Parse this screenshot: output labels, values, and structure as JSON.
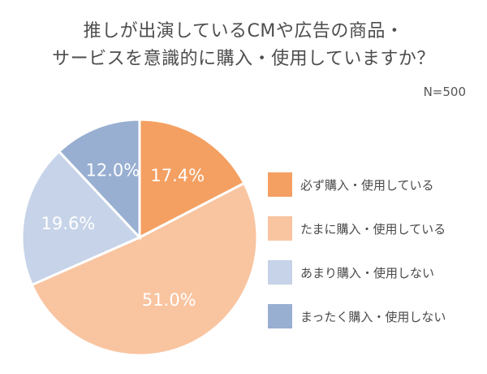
{
  "title_lines": [
    "推しが出演しているCMや広告の商品・",
    "サービスを意識的に購入・使用していますか？"
  ],
  "sample_size": "N=500",
  "chart_data": {
    "type": "pie",
    "title": "推しが出演しているCMや広告の商品・サービスを意識的に購入・使用していますか？",
    "categories": [
      "必ず購入・使用している",
      "たまに購入・使用している",
      "あまり購入・使用しない",
      "まったく購入・使用しない"
    ],
    "values": [
      17.4,
      51.0,
      19.6,
      12.0
    ],
    "value_labels": [
      "17.4%",
      "51.0%",
      "19.6%",
      "12.0%"
    ],
    "colors": [
      "#f4a062",
      "#f9c4a0",
      "#c6d3e8",
      "#98afd2"
    ],
    "legend_placement": "right"
  },
  "legend": [
    {
      "label": "必ず購入・使用している",
      "color": "#f4a062"
    },
    {
      "label": "たまに購入・使用している",
      "color": "#f9c4a0"
    },
    {
      "label": "あまり購入・使用しない",
      "color": "#c6d3e8"
    },
    {
      "label": "まったく購入・使用しない",
      "color": "#98afd2"
    }
  ]
}
